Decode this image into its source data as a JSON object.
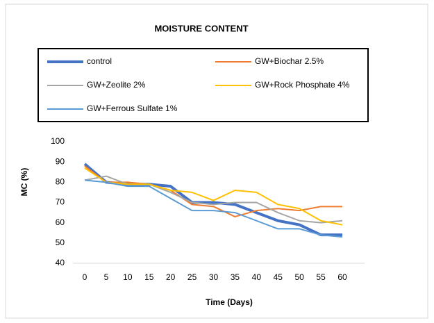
{
  "chart_data": {
    "type": "line",
    "title": "MOISTURE CONTENT",
    "x_label": "Time (Days)",
    "y_label": "MC (%)",
    "x": [
      0,
      5,
      10,
      15,
      20,
      25,
      30,
      35,
      40,
      45,
      50,
      55,
      60
    ],
    "xlim": [
      0,
      60
    ],
    "xticks": [
      0,
      5,
      10,
      15,
      20,
      25,
      30,
      35,
      40,
      45,
      50,
      55,
      60
    ],
    "ylim": [
      40,
      100
    ],
    "yticks": [
      40,
      50,
      60,
      70,
      80,
      90,
      100
    ],
    "series": [
      {
        "name": "control",
        "color": "#4472c4",
        "values": [
          89,
          80,
          79,
          79,
          78,
          70,
          70,
          69,
          65,
          61,
          59,
          54,
          54
        ]
      },
      {
        "name": "GW+Biochar 2.5%",
        "color": "#ed7d31",
        "values": [
          88,
          80,
          80,
          79,
          76,
          69,
          68,
          63,
          66,
          67,
          66,
          68,
          68
        ]
      },
      {
        "name": "GW+Zeolite 2%",
        "color": "#a5a5a5",
        "values": [
          81,
          83,
          79,
          79,
          75,
          70,
          69,
          70,
          70,
          65,
          61,
          60,
          61
        ]
      },
      {
        "name": "GW+Rock Phosphate 4%",
        "color": "#ffc000",
        "values": [
          87,
          80,
          79,
          79,
          76,
          75,
          71,
          76,
          75,
          69,
          67,
          61,
          59
        ]
      },
      {
        "name": "GW+Ferrous Sulfate 1%",
        "color": "#5b9bd5",
        "values": [
          81,
          80,
          78,
          78,
          72,
          66,
          66,
          65,
          61,
          57,
          57,
          54,
          53
        ]
      }
    ]
  }
}
